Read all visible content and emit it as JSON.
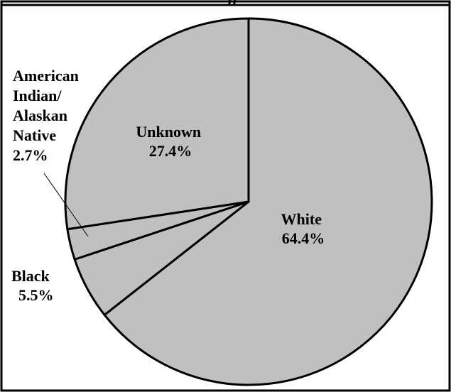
{
  "chart_data": {
    "type": "pie",
    "title_fragment": "ff",
    "slices": [
      {
        "label": "White",
        "value": 64.4,
        "pct_label": "64.4%",
        "label_lines": [
          "White"
        ]
      },
      {
        "label": "Black",
        "value": 5.5,
        "pct_label": "5.5%",
        "label_lines": [
          "Black"
        ]
      },
      {
        "label": "American Indian/ Alaskan Native",
        "value": 2.7,
        "pct_label": "2.7%",
        "label_lines": [
          "American",
          "Indian/",
          "Alaskan",
          "Native"
        ]
      },
      {
        "label": "Unknown",
        "value": 27.4,
        "pct_label": "27.4%",
        "label_lines": [
          "Unknown"
        ]
      }
    ],
    "slice_color": "#c0c0c0",
    "outline_color": "#000000",
    "start_angle": "12 o'clock",
    "direction": "clockwise",
    "legend": "none"
  }
}
